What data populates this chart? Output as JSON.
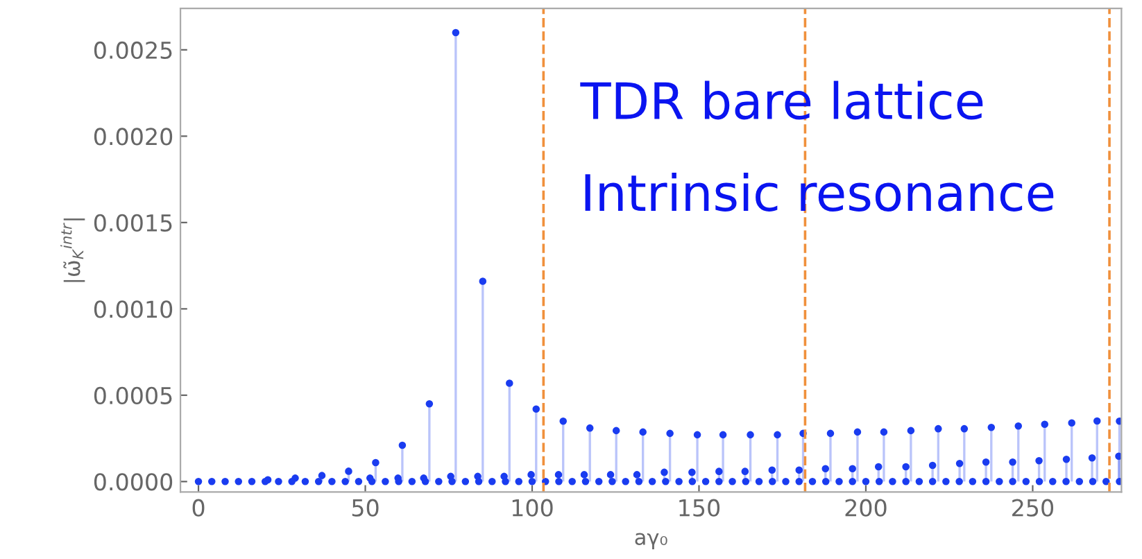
{
  "chart_data": {
    "type": "lollipop",
    "xlabel": "aγ₀",
    "ylabel": "|ω̃$_{K}$$^{intr}$|",
    "annotations": [
      "TDR bare lattice",
      "Intrinsic resonance"
    ],
    "xlim": [
      -5.4,
      276.6
    ],
    "xticks": [
      0,
      50,
      100,
      150,
      200,
      250
    ],
    "ylim": [
      -6e-05,
      0.00274
    ],
    "yticks": [
      {
        "value": 0,
        "label": "0.0000"
      },
      {
        "value": 0.0005,
        "label": "0.0005"
      },
      {
        "value": 0.001,
        "label": "0.0010"
      },
      {
        "value": 0.0015,
        "label": "0.0015"
      },
      {
        "value": 0.002,
        "label": "0.0020"
      },
      {
        "value": 0.0025,
        "label": "0.0025"
      }
    ],
    "grid": false,
    "marker": "circle",
    "ref_lines": [
      {
        "axis": "x",
        "value": 103.4,
        "color": "#f0903c",
        "line_style": "dashed"
      },
      {
        "axis": "x",
        "value": 181.8,
        "color": "#f0903c",
        "line_style": "dashed"
      },
      {
        "axis": "x",
        "value": 273.0,
        "color": "#f0903c",
        "line_style": "dashed"
      }
    ],
    "series": [
      {
        "color": "#1a3cf0",
        "x": [
          20.8,
          29.0,
          37.0,
          45.0,
          53.1,
          61.1,
          69.2,
          77.1,
          85.2,
          93.2,
          101.2,
          109.3,
          117.3,
          125.2,
          133.2,
          141.3,
          149.5,
          157.2,
          165.4,
          173.5,
          181.2,
          189.4,
          197.5,
          205.4,
          213.5,
          221.7,
          229.5,
          237.6,
          245.7,
          253.6,
          261.7,
          269.3,
          276.0
        ],
        "values": [
          1e-05,
          2e-05,
          3.5e-05,
          6e-05,
          0.00011,
          0.00021,
          0.00045,
          0.0026,
          0.00116,
          0.00057,
          0.00042,
          0.00035,
          0.00031,
          0.000295,
          0.000287,
          0.000279,
          0.000271,
          0.000271,
          0.000271,
          0.000271,
          0.000279,
          0.000279,
          0.000287,
          0.000287,
          0.000295,
          0.000306,
          0.000306,
          0.000314,
          0.000322,
          0.000332,
          0.00034,
          0.000351,
          0.00035
        ]
      },
      {
        "color": "#1a3cf0",
        "x": [
          51.4,
          59.8,
          67.5,
          75.6,
          83.7,
          91.6,
          99.7,
          107.9,
          115.6,
          123.5,
          131.4,
          139.6,
          147.9,
          156.0,
          163.8,
          171.9,
          180.0,
          187.9,
          196.0,
          203.8,
          212.0,
          220.0,
          228.1,
          236.0,
          244.0,
          251.9,
          260.1,
          267.8,
          275.8
        ],
        "values": [
          2e-05,
          2e-05,
          2e-05,
          3e-05,
          3e-05,
          3e-05,
          4e-05,
          4e-05,
          4e-05,
          4e-05,
          4e-05,
          5.4e-05,
          5.4e-05,
          5.9e-05,
          5.9e-05,
          6.7e-05,
          6.7e-05,
          7.5e-05,
          7.5e-05,
          8.6e-05,
          8.6e-05,
          9.4e-05,
          0.000105,
          0.000113,
          0.000113,
          0.000121,
          0.000129,
          0.000137,
          0.000147
        ]
      },
      {
        "color": "#1a3cf0",
        "x": [
          0,
          4,
          8,
          12,
          16,
          20,
          24,
          28,
          32,
          36,
          40,
          44,
          48,
          52,
          56,
          60,
          64,
          68,
          72,
          76,
          80,
          84,
          88,
          92,
          96,
          100,
          104,
          108,
          112,
          116,
          120,
          124,
          128,
          132,
          136,
          140,
          144,
          148,
          152,
          156,
          160,
          164,
          168,
          172,
          176,
          180,
          184,
          188,
          192,
          196,
          200,
          204,
          208,
          212,
          216,
          220,
          224,
          228,
          232,
          236,
          240,
          244,
          248,
          252,
          256,
          260,
          264,
          268,
          272,
          276
        ],
        "values": [
          0,
          0,
          0,
          0,
          0,
          0,
          0,
          0,
          0,
          0,
          0,
          0,
          0,
          0,
          0,
          0,
          0,
          0,
          0,
          0,
          0,
          0,
          0,
          0,
          0,
          0,
          0,
          0,
          0,
          0,
          0,
          0,
          0,
          0,
          0,
          0,
          0,
          0,
          0,
          0,
          0,
          0,
          0,
          0,
          0,
          0,
          0,
          0,
          0,
          0,
          0,
          0,
          0,
          0,
          0,
          0,
          0,
          0,
          0,
          0,
          0,
          0,
          0,
          0,
          0,
          0,
          0,
          0,
          0,
          0
        ]
      }
    ]
  }
}
